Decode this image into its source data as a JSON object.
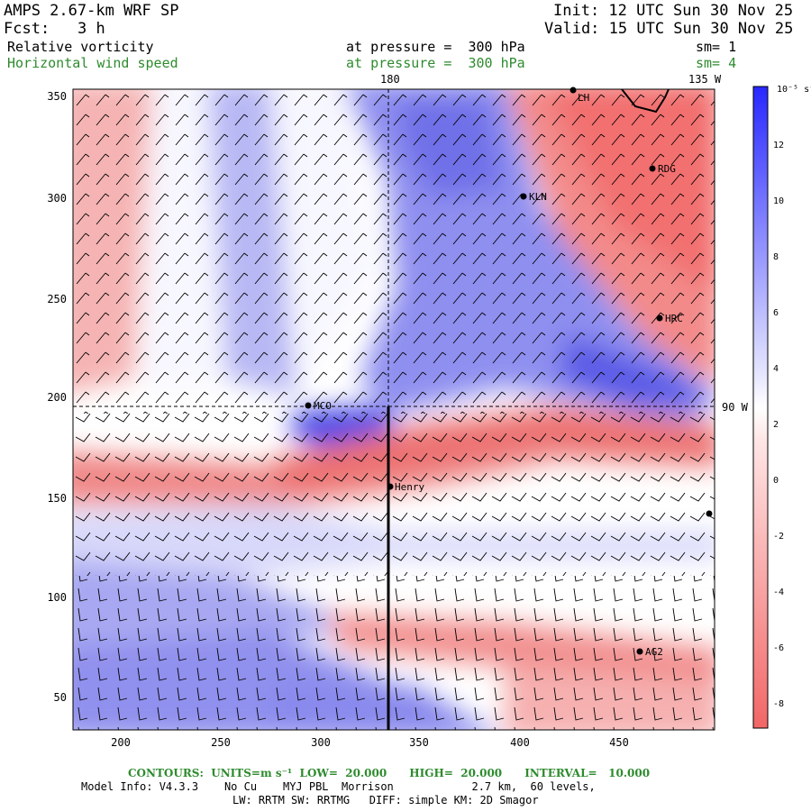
{
  "header": {
    "model": "AMPS 2.67-km WRF SP",
    "init": "Init: 12 UTC Sun 30 Nov 25",
    "fcst_label": "Fcst:",
    "fcst_value": "3 h",
    "valid": "Valid: 15 UTC Sun 30 Nov 25",
    "field1": "Relative vorticity",
    "field1_level": "at pressure =  300 hPa",
    "field1_sm": "sm= 1",
    "field2": "Horizontal wind speed",
    "field2_level": "at pressure =  300 hPa",
    "field2_sm": "sm= 4"
  },
  "map": {
    "x_ticks": [
      "200",
      "250",
      "300",
      "350",
      "400",
      "450"
    ],
    "y_ticks": [
      "350",
      "300",
      "250",
      "200",
      "150",
      "100",
      "50"
    ],
    "lon_labels": [
      "180",
      "135 W",
      "90 W"
    ],
    "stations": [
      "LH",
      "RDG",
      "KLN",
      "HRC",
      "MCO",
      "Henry",
      "AG2"
    ]
  },
  "colorbar": {
    "unit": "10⁻⁵ s⁻¹",
    "ticks": [
      "12",
      "10",
      "8",
      "6",
      "4",
      "2",
      "0",
      "-2",
      "-4",
      "-6",
      "-8"
    ],
    "colors": {
      "neg_max": "#f26666",
      "neutral": "#ffffff",
      "pos_max": "#2828ff"
    }
  },
  "footer": {
    "contours": "CONTOURS:  UNITS=m s⁻¹  LOW=  20.000      HIGH=  20.000      INTERVAL=   10.000",
    "model_info": "Model Info: V4.3.3    No Cu    MYJ PBL  Morrison            2.7 km,  60 levels,",
    "physics": "LW: RRTM SW: RRTMG   DIFF: simple KM: 2D Smagor"
  }
}
